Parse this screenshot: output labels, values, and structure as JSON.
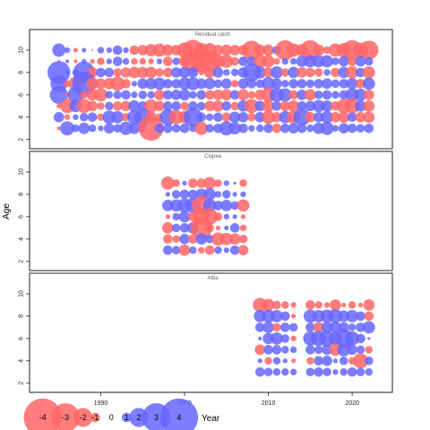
{
  "chart_data": [
    {
      "type": "bubble",
      "title": "Residual catch",
      "years": [
        1985,
        1986,
        1987,
        1988,
        1989,
        1990,
        1991,
        1992,
        1993,
        1994,
        1995,
        1996,
        1997,
        1998,
        1999,
        2000,
        2001,
        2002,
        2003,
        2004,
        2005,
        2006,
        2007,
        2008,
        2009,
        2010,
        2011,
        2012,
        2013,
        2014,
        2015,
        2016,
        2017,
        2018,
        2019,
        2020,
        2021,
        2022
      ],
      "ages": [
        10,
        9,
        8,
        7,
        6,
        5,
        4,
        3
      ],
      "residuals": [
        [
          1.4,
          0.6,
          -0.5,
          0.5,
          -0.2,
          0.7,
          0.6,
          1.0,
          0.6,
          -1.0,
          -1.1,
          -1.3,
          -1.4,
          -1.2,
          -1.1,
          -1.6,
          -2.2,
          -1.5,
          -1.5,
          -1.1,
          -1.2,
          -1.1,
          -1.1,
          -2.0,
          -1.2,
          -1.2,
          0.9,
          -2.1,
          -1.4,
          -1.3,
          -2.1,
          -1.2,
          -0.8,
          -1.4,
          -1.5,
          -2.1,
          -1.6,
          -2.0
        ],
        [
          -0.3,
          0.4,
          -0.4,
          0.5,
          -0.5,
          -0.8,
          0.6,
          1.0,
          0.7,
          -0.7,
          -0.7,
          -0.6,
          0.6,
          -1.0,
          0.8,
          -1.2,
          -2.3,
          -2.3,
          -2.2,
          -1.4,
          -1.4,
          -0.9,
          1.0,
          1.0,
          -1.4,
          -1.3,
          -0.7,
          0.7,
          0.7,
          1.2,
          1.3,
          1.3,
          1.3,
          0.8,
          1.1,
          -1.0,
          1.1,
          0.9
        ],
        [
          2.4,
          0.4,
          0.7,
          2.3,
          -1.1,
          1.0,
          1.0,
          -0.9,
          -1.1,
          -1.2,
          -1.2,
          -1.2,
          -0.9,
          -1.0,
          1.1,
          1.2,
          1.1,
          -0.6,
          -1.2,
          1.1,
          0.7,
          0.8,
          1.1,
          1.9,
          1.3,
          -1.1,
          1.3,
          -0.9,
          1.2,
          -1.1,
          -1.0,
          -0.9,
          0.7,
          -1.0,
          1.2,
          -1.3,
          1.0,
          -1.3
        ],
        [
          1.8,
          -0.7,
          -1.5,
          2.5,
          -1.3,
          -1.1,
          -1.2,
          -1.5,
          -1.0,
          0.6,
          1.1,
          1.2,
          1.3,
          1.0,
          1.0,
          1.3,
          1.4,
          1.1,
          1.2,
          0.9,
          1.1,
          -0.8,
          1.1,
          1.0,
          0.9,
          1.4,
          1.1,
          0.8,
          1.0,
          1.0,
          0.9,
          1.0,
          1.1,
          0.9,
          1.0,
          1.2,
          -1.0,
          1.3
        ],
        [
          1.9,
          -0.5,
          1.7,
          -0.8,
          -1.2,
          -1.4,
          0.8,
          0.9,
          1.0,
          0.7,
          0.9,
          0.8,
          -1.1,
          1.0,
          1.1,
          1.2,
          0.8,
          1.0,
          -1.0,
          -1.1,
          -1.2,
          1.0,
          -1.2,
          -0.8,
          -1.1,
          -1.5,
          1.5,
          1.4,
          -1.0,
          1.1,
          -1.2,
          0.9,
          1.0,
          0.8,
          1.0,
          1.4,
          1.3,
          -1.1
        ],
        [
          -0.5,
          -1.5,
          1.3,
          -1.5,
          -1.1,
          -0.8,
          0.9,
          -1.0,
          -1.1,
          1.2,
          1.0,
          -1.4,
          -1.1,
          1.0,
          1.0,
          -0.9,
          1.0,
          0.9,
          -1.1,
          -1.2,
          1.0,
          -0.9,
          1.2,
          -1.5,
          1.1,
          -1.3,
          1.0,
          -1.1,
          -1.2,
          1.0,
          1.1,
          1.3,
          1.2,
          -1.0,
          -1.5,
          -1.6,
          1.2,
          -1.2
        ],
        [
          1.1,
          -0.6,
          0.6,
          0.9,
          1.0,
          -0.8,
          1.4,
          1.3,
          -0.9,
          1.5,
          1.8,
          -1.2,
          -0.8,
          1.7,
          -1.5,
          -1.3,
          2.0,
          1.0,
          0.8,
          1.0,
          -1.0,
          1.2,
          1.1,
          -0.9,
          1.1,
          -1.4,
          -1.1,
          1.3,
          -1.4,
          1.8,
          -1.1,
          1.1,
          1.3,
          -1.1,
          -1.2,
          1.0,
          -1.1,
          -1.2
        ],
        [
          -0.4,
          1.5,
          0.8,
          1.2,
          0.8,
          0.6,
          1.1,
          0.9,
          1.4,
          1.2,
          0.8,
          -2.6,
          1.0,
          1.0,
          0.9,
          1.0,
          0.8,
          -1.4,
          0.9,
          1.0,
          1.5,
          1.3,
          1.0,
          0.7,
          0.8,
          1.0,
          -1.0,
          1.0,
          1.1,
          1.0,
          0.8,
          1.2,
          1.4,
          0.7,
          1.1,
          1.0,
          0.9,
          1.0
        ]
      ]
    },
    {
      "type": "bubble",
      "title": "Clupea",
      "years": [
        1998,
        1999,
        2000,
        2001,
        2002,
        2003,
        2004,
        2005,
        2006,
        2007
      ],
      "ages": [
        9,
        8,
        7,
        6,
        5,
        4,
        3
      ],
      "residuals": [
        [
          -1.4,
          -0.8,
          0.5,
          -1.0,
          -1.0,
          -1.3,
          -0.8,
          0.6,
          0.3,
          -0.8
        ],
        [
          0.5,
          0.9,
          1.0,
          1.0,
          1.2,
          1.3,
          0.7,
          0.9,
          0.5,
          0.6
        ],
        [
          1.2,
          1.3,
          1.5,
          1.6,
          -2.0,
          1.4,
          1.0,
          1.2,
          0.9,
          -1.3
        ],
        [
          -0.5,
          0.8,
          1.2,
          -1.0,
          -1.8,
          -1.7,
          -0.9,
          0.6,
          0.5,
          -0.5
        ],
        [
          -1.2,
          0.9,
          1.0,
          1.2,
          -2.3,
          -0.9,
          -0.5,
          0.5,
          1.0,
          -0.7
        ],
        [
          -1.0,
          -0.8,
          1.1,
          -1.0,
          1.2,
          0.9,
          -1.4,
          -1.3,
          -1.2,
          -0.9
        ],
        [
          1.0,
          0.9,
          -1.2,
          0.8,
          -0.7,
          -1.0,
          0.8,
          0.6,
          1.0,
          -1.1
        ]
      ]
    },
    {
      "type": "bubble",
      "title": "Alba",
      "years": [
        2009,
        2010,
        2011,
        2012,
        2013,
        2015,
        2016,
        2017,
        2018,
        2019,
        2020,
        2021,
        2022
      ],
      "ages": [
        9,
        8,
        7,
        6,
        5,
        4,
        3
      ],
      "residuals": [
        [
          -1.5,
          -1.3,
          -0.9,
          -0.8,
          -0.6,
          -1.0,
          -0.8,
          -0.6,
          -1.2,
          -0.5,
          -0.8,
          -0.5,
          -1.2
        ],
        [
          1.3,
          1.4,
          1.3,
          1.0,
          -0.5,
          1.4,
          1.3,
          1.4,
          1.5,
          1.2,
          1.3,
          1.0,
          -1.0
        ],
        [
          1.0,
          1.2,
          -0.9,
          1.0,
          0.9,
          1.0,
          -1.1,
          1.2,
          1.2,
          1.1,
          0.8,
          1.0,
          1.3
        ],
        [
          0.4,
          1.2,
          1.3,
          0.9,
          -0.6,
          1.5,
          1.6,
          1.7,
          1.4,
          2.0,
          1.5,
          1.0,
          0.3
        ],
        [
          -1.1,
          1.0,
          1.0,
          0.8,
          0.7,
          1.0,
          0.9,
          1.1,
          -1.3,
          1.4,
          1.1,
          0.9,
          -0.8
        ],
        [
          0.5,
          -0.8,
          0.8,
          0.5,
          -0.5,
          -0.8,
          1.0,
          1.1,
          0.5,
          0.9,
          -0.8,
          -1.6,
          0.9
        ],
        [
          1.0,
          0.9,
          0.8,
          0.8,
          0.7,
          0.9,
          1.0,
          0.9,
          0.6,
          0.8,
          1.0,
          0.9,
          0.8
        ]
      ]
    }
  ],
  "axes": {
    "x_ticks": [
      1990,
      2000,
      2010,
      2020
    ],
    "x_range": [
      1981.5,
      2024.8
    ],
    "y_ticks": [
      2,
      4,
      6,
      8,
      10
    ],
    "y_range": [
      1.5,
      11.2
    ],
    "ylabel": "Age",
    "xlabel": "Year"
  },
  "legend": {
    "values": [
      -4,
      -3,
      -2,
      -1,
      0,
      1,
      2,
      3,
      4
    ],
    "labels": [
      "-4",
      "-3",
      "-2",
      "-1",
      "0",
      "1",
      "2",
      "3",
      "4"
    ]
  },
  "colors": {
    "negative": "#ff6666",
    "positive": "#6666ff",
    "frame": "#222222",
    "title": "#666666"
  }
}
